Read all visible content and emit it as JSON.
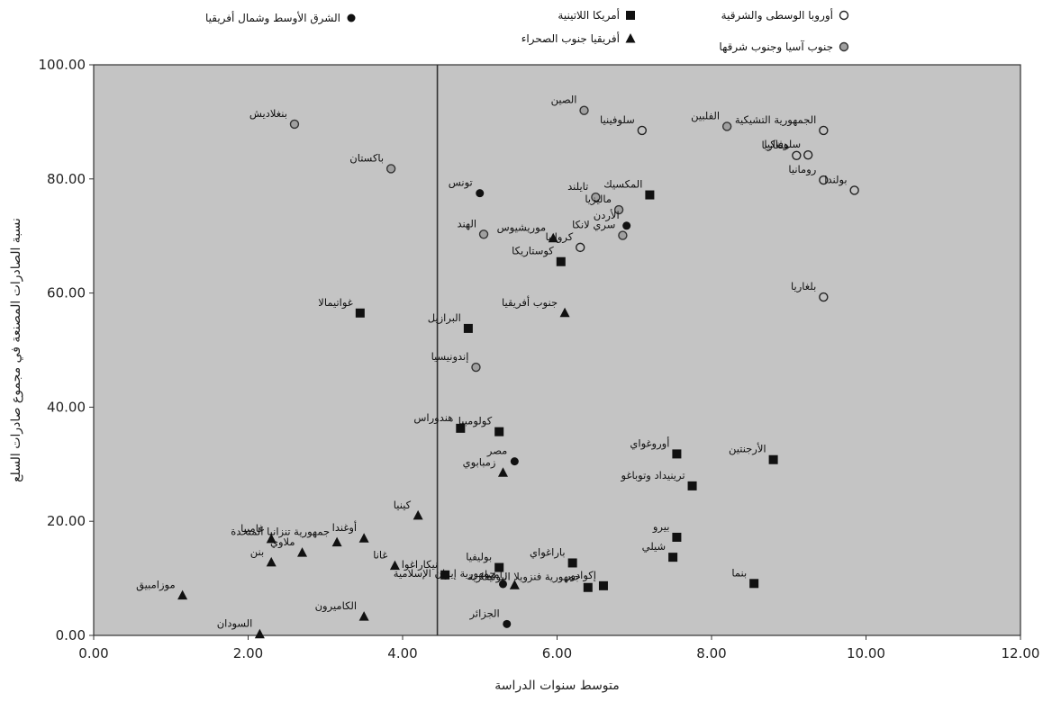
{
  "chart_data": {
    "type": "scatter",
    "xlabel": "متوسط سنوات الدراسة",
    "ylabel": "نسبة الصادرات المصنعة في مجموع صادرات السلع",
    "xlim": [
      0,
      12
    ],
    "ylim": [
      0,
      100
    ],
    "x_ticks": [
      "0.00",
      "2.00",
      "4.00",
      "6.00",
      "8.00",
      "10.00",
      "12.00"
    ],
    "y_ticks": [
      "0.00",
      "20.00",
      "40.00",
      "60.00",
      "80.00",
      "100.00"
    ],
    "grid": false,
    "background_color": "#c4c4c4",
    "reference_line_x": 4.45,
    "legend_position": "top",
    "series": [
      {
        "name": "الشرق الأوسط وشمال أفريقيا",
        "marker": "circle-filled",
        "color": "#111111",
        "points": [
          {
            "label": "تونس",
            "x": 5.0,
            "y": 77.5
          },
          {
            "label": "الأردن",
            "x": 6.9,
            "y": 71.8
          },
          {
            "label": "مصر",
            "x": 5.45,
            "y": 30.5
          },
          {
            "label": "جمهورية إيران الإسلامية",
            "x": 5.3,
            "y": 9.0
          },
          {
            "label": "الجزائر",
            "x": 5.35,
            "y": 2.0
          }
        ]
      },
      {
        "name": "أمريكا اللاتينية",
        "marker": "square-filled",
        "color": "#111111",
        "points": [
          {
            "label": "المكسيك",
            "x": 7.2,
            "y": 77.2
          },
          {
            "label": "كوستاريكا",
            "x": 6.05,
            "y": 65.5
          },
          {
            "label": "غواتيمالا",
            "x": 3.45,
            "y": 56.5
          },
          {
            "label": "البرازيل",
            "x": 4.85,
            "y": 53.8
          },
          {
            "label": "هندوراس",
            "x": 4.75,
            "y": 36.3
          },
          {
            "label": "كولومبيا",
            "x": 5.25,
            "y": 35.7
          },
          {
            "label": "أوروغواي",
            "x": 7.55,
            "y": 31.8
          },
          {
            "label": "الأرجنتين",
            "x": 8.8,
            "y": 30.8
          },
          {
            "label": "ترينيداد وتوباغو",
            "x": 7.75,
            "y": 26.2
          },
          {
            "label": "بيرو",
            "x": 7.55,
            "y": 17.2
          },
          {
            "label": "باراغواي",
            "x": 6.2,
            "y": 12.7
          },
          {
            "label": "شيلي",
            "x": 7.5,
            "y": 13.7
          },
          {
            "label": "بوليفيا",
            "x": 5.25,
            "y": 11.9
          },
          {
            "label": "نيكاراغوا",
            "x": 4.55,
            "y": 10.6
          },
          {
            "label": "إكوادور",
            "x": 6.6,
            "y": 8.7
          },
          {
            "label": "جمهورية فنزويلا البوليفارية",
            "x": 6.4,
            "y": 8.4
          },
          {
            "label": "بنما",
            "x": 8.55,
            "y": 9.1
          }
        ]
      },
      {
        "name": "أفريقيا جنوب الصحراء",
        "marker": "triangle-filled",
        "color": "#111111",
        "points": [
          {
            "label": "موريشيوس",
            "x": 5.95,
            "y": 69.6
          },
          {
            "label": "جنوب أفريقيا",
            "x": 6.1,
            "y": 56.5
          },
          {
            "label": "زمبابوي",
            "x": 5.3,
            "y": 28.5
          },
          {
            "label": "كينيا",
            "x": 4.2,
            "y": 21.0
          },
          {
            "label": "جمهورية تنزانيا المتحدة",
            "x": 3.15,
            "y": 16.3
          },
          {
            "label": "أوغندا",
            "x": 3.5,
            "y": 17.0
          },
          {
            "label": "غامبيا",
            "x": 2.3,
            "y": 16.9
          },
          {
            "label": "بنن",
            "x": 2.3,
            "y": 12.8
          },
          {
            "label": "ملاوي",
            "x": 2.7,
            "y": 14.5
          },
          {
            "label": "غانا",
            "x": 3.9,
            "y": 12.2
          },
          {
            "label": "زامبيا",
            "x": 5.45,
            "y": 8.8
          },
          {
            "label": "موزامبيق",
            "x": 1.15,
            "y": 7.0
          },
          {
            "label": "الكاميرون",
            "x": 3.5,
            "y": 3.3
          },
          {
            "label": "السودان",
            "x": 2.15,
            "y": 0.2
          }
        ]
      },
      {
        "name": "أوروبا الوسطى والشرقية",
        "marker": "circle-open",
        "color": "#222222",
        "points": [
          {
            "label": "الجمهورية التشيكية",
            "x": 9.45,
            "y": 88.5
          },
          {
            "label": "سلوفاكيا",
            "x": 9.25,
            "y": 84.2
          },
          {
            "label": "هنغاريا",
            "x": 9.1,
            "y": 84.1
          },
          {
            "label": "رومانيا",
            "x": 9.45,
            "y": 79.8
          },
          {
            "label": "بولندا",
            "x": 9.85,
            "y": 78.0
          },
          {
            "label": "سلوفينيا",
            "x": 7.1,
            "y": 88.5
          },
          {
            "label": "كرواتيا",
            "x": 6.3,
            "y": 68.0
          },
          {
            "label": "بلغاريا",
            "x": 9.45,
            "y": 59.3
          }
        ]
      },
      {
        "name": "جنوب آسيا وجنوب شرقها",
        "marker": "circle-dot",
        "color": "#333333",
        "points": [
          {
            "label": "الصين",
            "x": 6.35,
            "y": 92.0
          },
          {
            "label": "الفلبين",
            "x": 8.2,
            "y": 89.2
          },
          {
            "label": "بنغلاديش",
            "x": 2.6,
            "y": 89.6
          },
          {
            "label": "باكستان",
            "x": 3.85,
            "y": 81.8
          },
          {
            "label": "تايلند",
            "x": 6.5,
            "y": 76.8
          },
          {
            "label": "ماليزيا",
            "x": 6.8,
            "y": 74.6
          },
          {
            "label": "الهند",
            "x": 5.05,
            "y": 70.3
          },
          {
            "label": "سري لانكا",
            "x": 6.85,
            "y": 70.1
          },
          {
            "label": "إندونيسيا",
            "x": 4.95,
            "y": 47.0
          }
        ]
      }
    ]
  }
}
